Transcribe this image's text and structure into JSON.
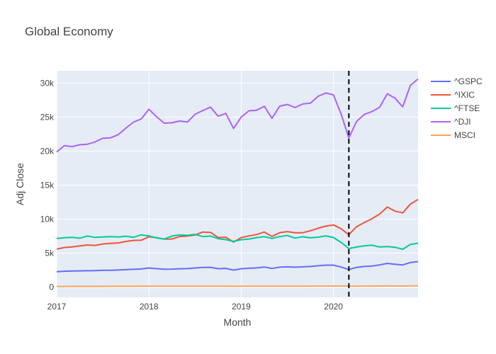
{
  "chart_data": {
    "type": "line",
    "title": "Global Economy",
    "xlabel": "Month",
    "ylabel": "Adj Close",
    "x_ticks": [
      {
        "label": "2017",
        "value": "2017-01"
      },
      {
        "label": "2018",
        "value": "2018-01"
      },
      {
        "label": "2019",
        "value": "2019-01"
      },
      {
        "label": "2020",
        "value": "2020-01"
      }
    ],
    "y_ticks": [
      {
        "label": "0",
        "value": 0
      },
      {
        "label": "5k",
        "value": 5000
      },
      {
        "label": "10k",
        "value": 10000
      },
      {
        "label": "15k",
        "value": 15000
      },
      {
        "label": "20k",
        "value": 20000
      },
      {
        "label": "25k",
        "value": 25000
      },
      {
        "label": "30k",
        "value": 30000
      }
    ],
    "xlim": [
      "2017-01",
      "2020-12"
    ],
    "ylim": [
      -1500,
      31800
    ],
    "grid": true,
    "legend_position": "right",
    "vline": {
      "x": "2020-03",
      "style": "dashed",
      "color": "#000000"
    },
    "months": [
      "2017-01",
      "2017-02",
      "2017-03",
      "2017-04",
      "2017-05",
      "2017-06",
      "2017-07",
      "2017-08",
      "2017-09",
      "2017-10",
      "2017-11",
      "2017-12",
      "2018-01",
      "2018-02",
      "2018-03",
      "2018-04",
      "2018-05",
      "2018-06",
      "2018-07",
      "2018-08",
      "2018-09",
      "2018-10",
      "2018-11",
      "2018-12",
      "2019-01",
      "2019-02",
      "2019-03",
      "2019-04",
      "2019-05",
      "2019-06",
      "2019-07",
      "2019-08",
      "2019-09",
      "2019-10",
      "2019-11",
      "2019-12",
      "2020-01",
      "2020-02",
      "2020-03",
      "2020-04",
      "2020-05",
      "2020-06",
      "2020-07",
      "2020-08",
      "2020-09",
      "2020-10",
      "2020-11",
      "2020-12"
    ],
    "series": [
      {
        "name": "^GSPC",
        "color": "#636efa",
        "values": [
          2280,
          2340,
          2370,
          2390,
          2410,
          2430,
          2470,
          2480,
          2520,
          2580,
          2620,
          2670,
          2820,
          2710,
          2640,
          2650,
          2700,
          2720,
          2820,
          2900,
          2910,
          2710,
          2760,
          2510,
          2700,
          2780,
          2830,
          2950,
          2750,
          2940,
          2980,
          2930,
          2980,
          3040,
          3140,
          3230,
          3230,
          2950,
          2580,
          2910,
          3040,
          3100,
          3270,
          3500,
          3360,
          3270,
          3620,
          3760
        ]
      },
      {
        "name": "^IXIC",
        "color": "#ef553b",
        "values": [
          5600,
          5830,
          5910,
          6050,
          6200,
          6140,
          6350,
          6430,
          6500,
          6720,
          6870,
          6900,
          7410,
          7270,
          7060,
          7070,
          7440,
          7510,
          7670,
          8110,
          8050,
          7300,
          7330,
          6630,
          7280,
          7530,
          7730,
          8100,
          7450,
          8010,
          8170,
          8000,
          8000,
          8290,
          8660,
          8970,
          9150,
          8570,
          7700,
          8890,
          9490,
          10060,
          10740,
          11780,
          11170,
          10910,
          12200,
          12890
        ]
      },
      {
        "name": "^FTSE",
        "color": "#00cc96",
        "values": [
          7150,
          7260,
          7320,
          7200,
          7520,
          7310,
          7370,
          7430,
          7370,
          7490,
          7330,
          7690,
          7530,
          7230,
          7060,
          7510,
          7680,
          7640,
          7750,
          7430,
          7510,
          7130,
          6980,
          6730,
          6970,
          7070,
          7280,
          7420,
          7160,
          7430,
          7590,
          7210,
          7410,
          7250,
          7350,
          7540,
          7290,
          6580,
          5670,
          5900,
          6080,
          6170,
          5900,
          5960,
          5870,
          5580,
          6270,
          6460
        ]
      },
      {
        "name": "^DJI",
        "color": "#ab63fa",
        "values": [
          19860,
          20810,
          20660,
          20940,
          21010,
          21350,
          21890,
          21950,
          22410,
          23380,
          24270,
          24720,
          26150,
          25030,
          24100,
          24160,
          24420,
          24270,
          25410,
          25960,
          26460,
          25120,
          25540,
          23330,
          24999,
          25920,
          26000,
          26590,
          24820,
          26600,
          26860,
          26400,
          26920,
          27050,
          28050,
          28540,
          28260,
          25410,
          21920,
          24350,
          25380,
          25810,
          26430,
          28430,
          27780,
          26500,
          29640,
          30600
        ]
      },
      {
        "name": "MSCI",
        "color": "#ffa15a",
        "values": [
          100,
          104,
          108,
          110,
          113,
          114,
          118,
          120,
          122,
          126,
          128,
          130,
          138,
          132,
          130,
          132,
          134,
          135,
          138,
          140,
          141,
          135,
          137,
          128,
          136,
          140,
          142,
          146,
          138,
          144,
          147,
          145,
          147,
          150,
          154,
          158,
          160,
          150,
          135,
          148,
          154,
          158,
          164,
          172,
          168,
          165,
          180,
          186
        ]
      }
    ]
  }
}
